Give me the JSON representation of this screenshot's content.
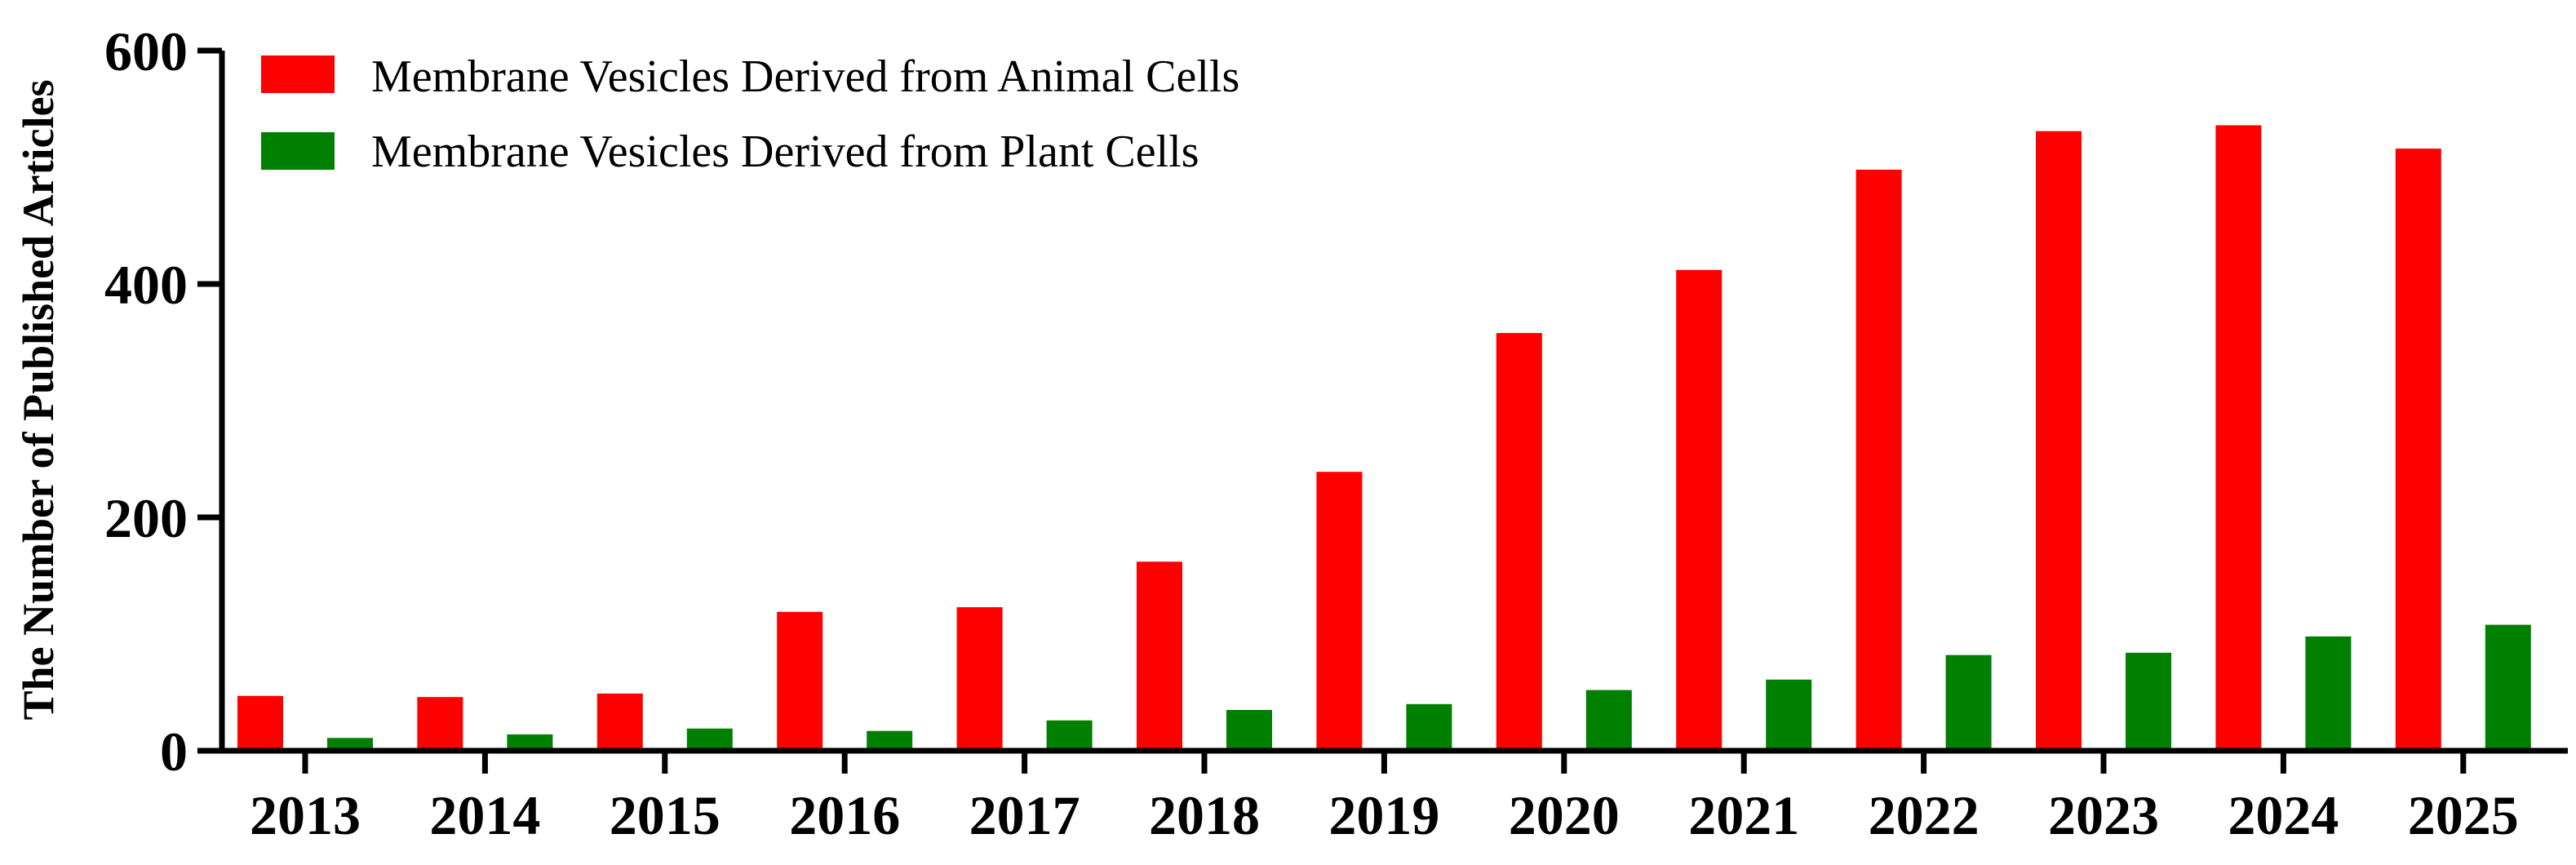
{
  "chart_data": {
    "type": "bar",
    "title": "",
    "xlabel": "",
    "ylabel": "The Number of Published Articles",
    "ylim": [
      0,
      600
    ],
    "yticks": [
      0,
      200,
      400,
      600
    ],
    "grid": false,
    "legend_position": "top-left",
    "categories": [
      "2013",
      "2014",
      "2015",
      "2016",
      "2017",
      "2018",
      "2019",
      "2020",
      "2021",
      "2022",
      "2023",
      "2024",
      "2025"
    ],
    "series": [
      {
        "name": "Membrane Vesicles Derived from Animal Cells",
        "color": "#ff0000",
        "values": [
          47,
          46,
          49,
          119,
          123,
          162,
          239,
          358,
          412,
          498,
          531,
          536,
          516
        ]
      },
      {
        "name": "Membrane Vesicles Derived from Plant Cells",
        "color": "#008000",
        "values": [
          11,
          14,
          19,
          17,
          26,
          35,
          40,
          52,
          61,
          82,
          84,
          98,
          108
        ]
      }
    ]
  }
}
